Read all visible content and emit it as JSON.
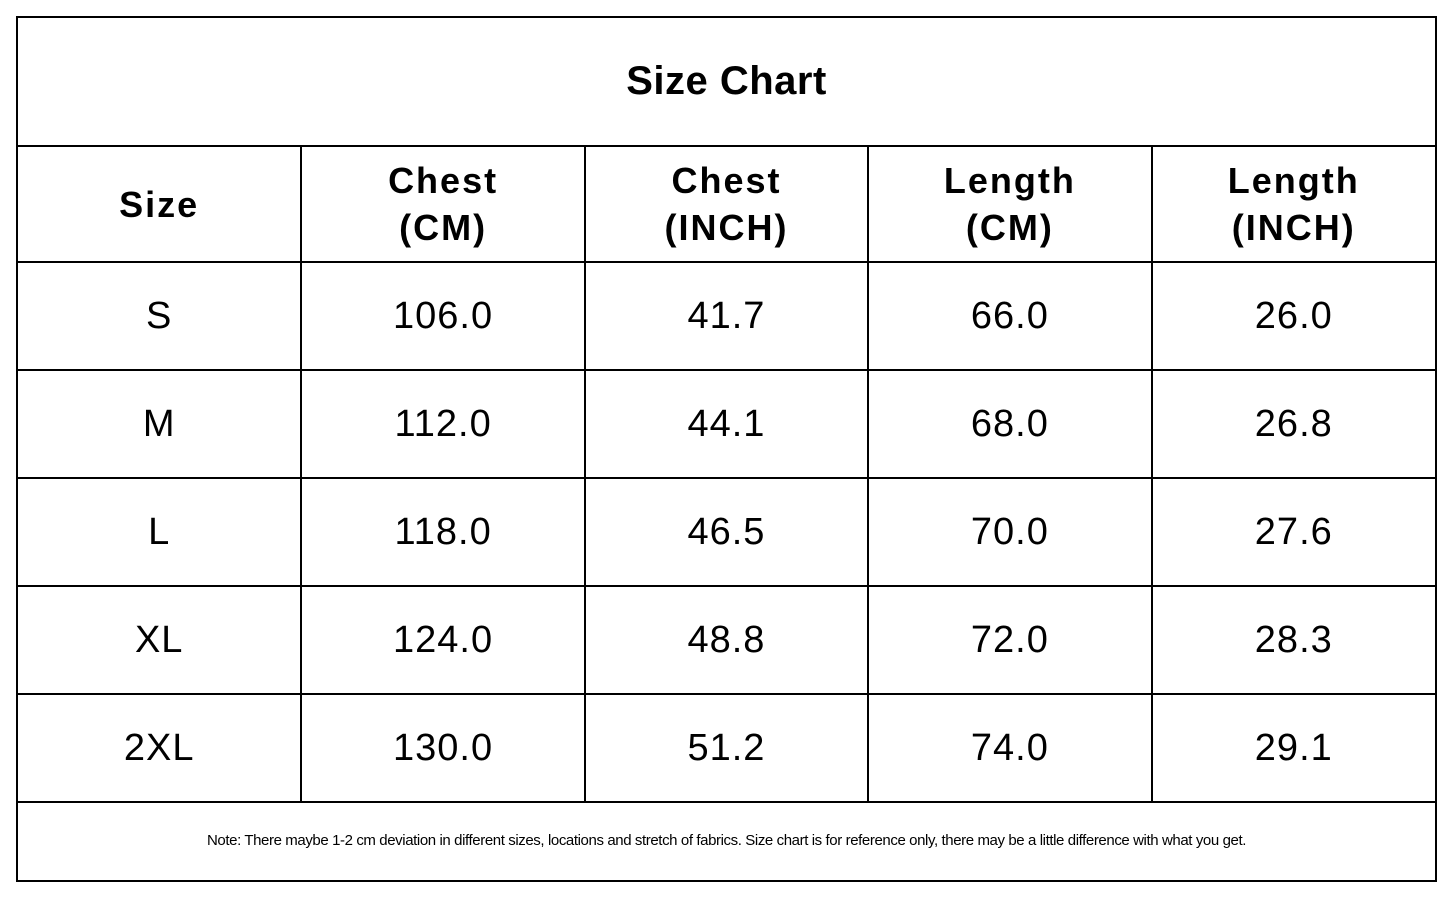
{
  "title": "Size Chart",
  "headers": [
    {
      "line1": "Size",
      "line2": ""
    },
    {
      "line1": "Chest",
      "line2": "(CM)"
    },
    {
      "line1": "Chest",
      "line2": "(INCH)"
    },
    {
      "line1": "Length",
      "line2": "(CM)"
    },
    {
      "line1": "Length",
      "line2": "(INCH)"
    }
  ],
  "rows": [
    [
      "S",
      "106.0",
      "41.7",
      "66.0",
      "26.0"
    ],
    [
      "M",
      "112.0",
      "44.1",
      "68.0",
      "26.8"
    ],
    [
      "L",
      "118.0",
      "46.5",
      "70.0",
      "27.6"
    ],
    [
      "XL",
      "124.0",
      "48.8",
      "72.0",
      "28.3"
    ],
    [
      "2XL",
      "130.0",
      "51.2",
      "74.0",
      "29.1"
    ]
  ],
  "note": "Note: There maybe 1-2 cm deviation in different sizes, locations and stretch of fabrics. Size chart is for reference only, there may be a little difference with what you get."
}
